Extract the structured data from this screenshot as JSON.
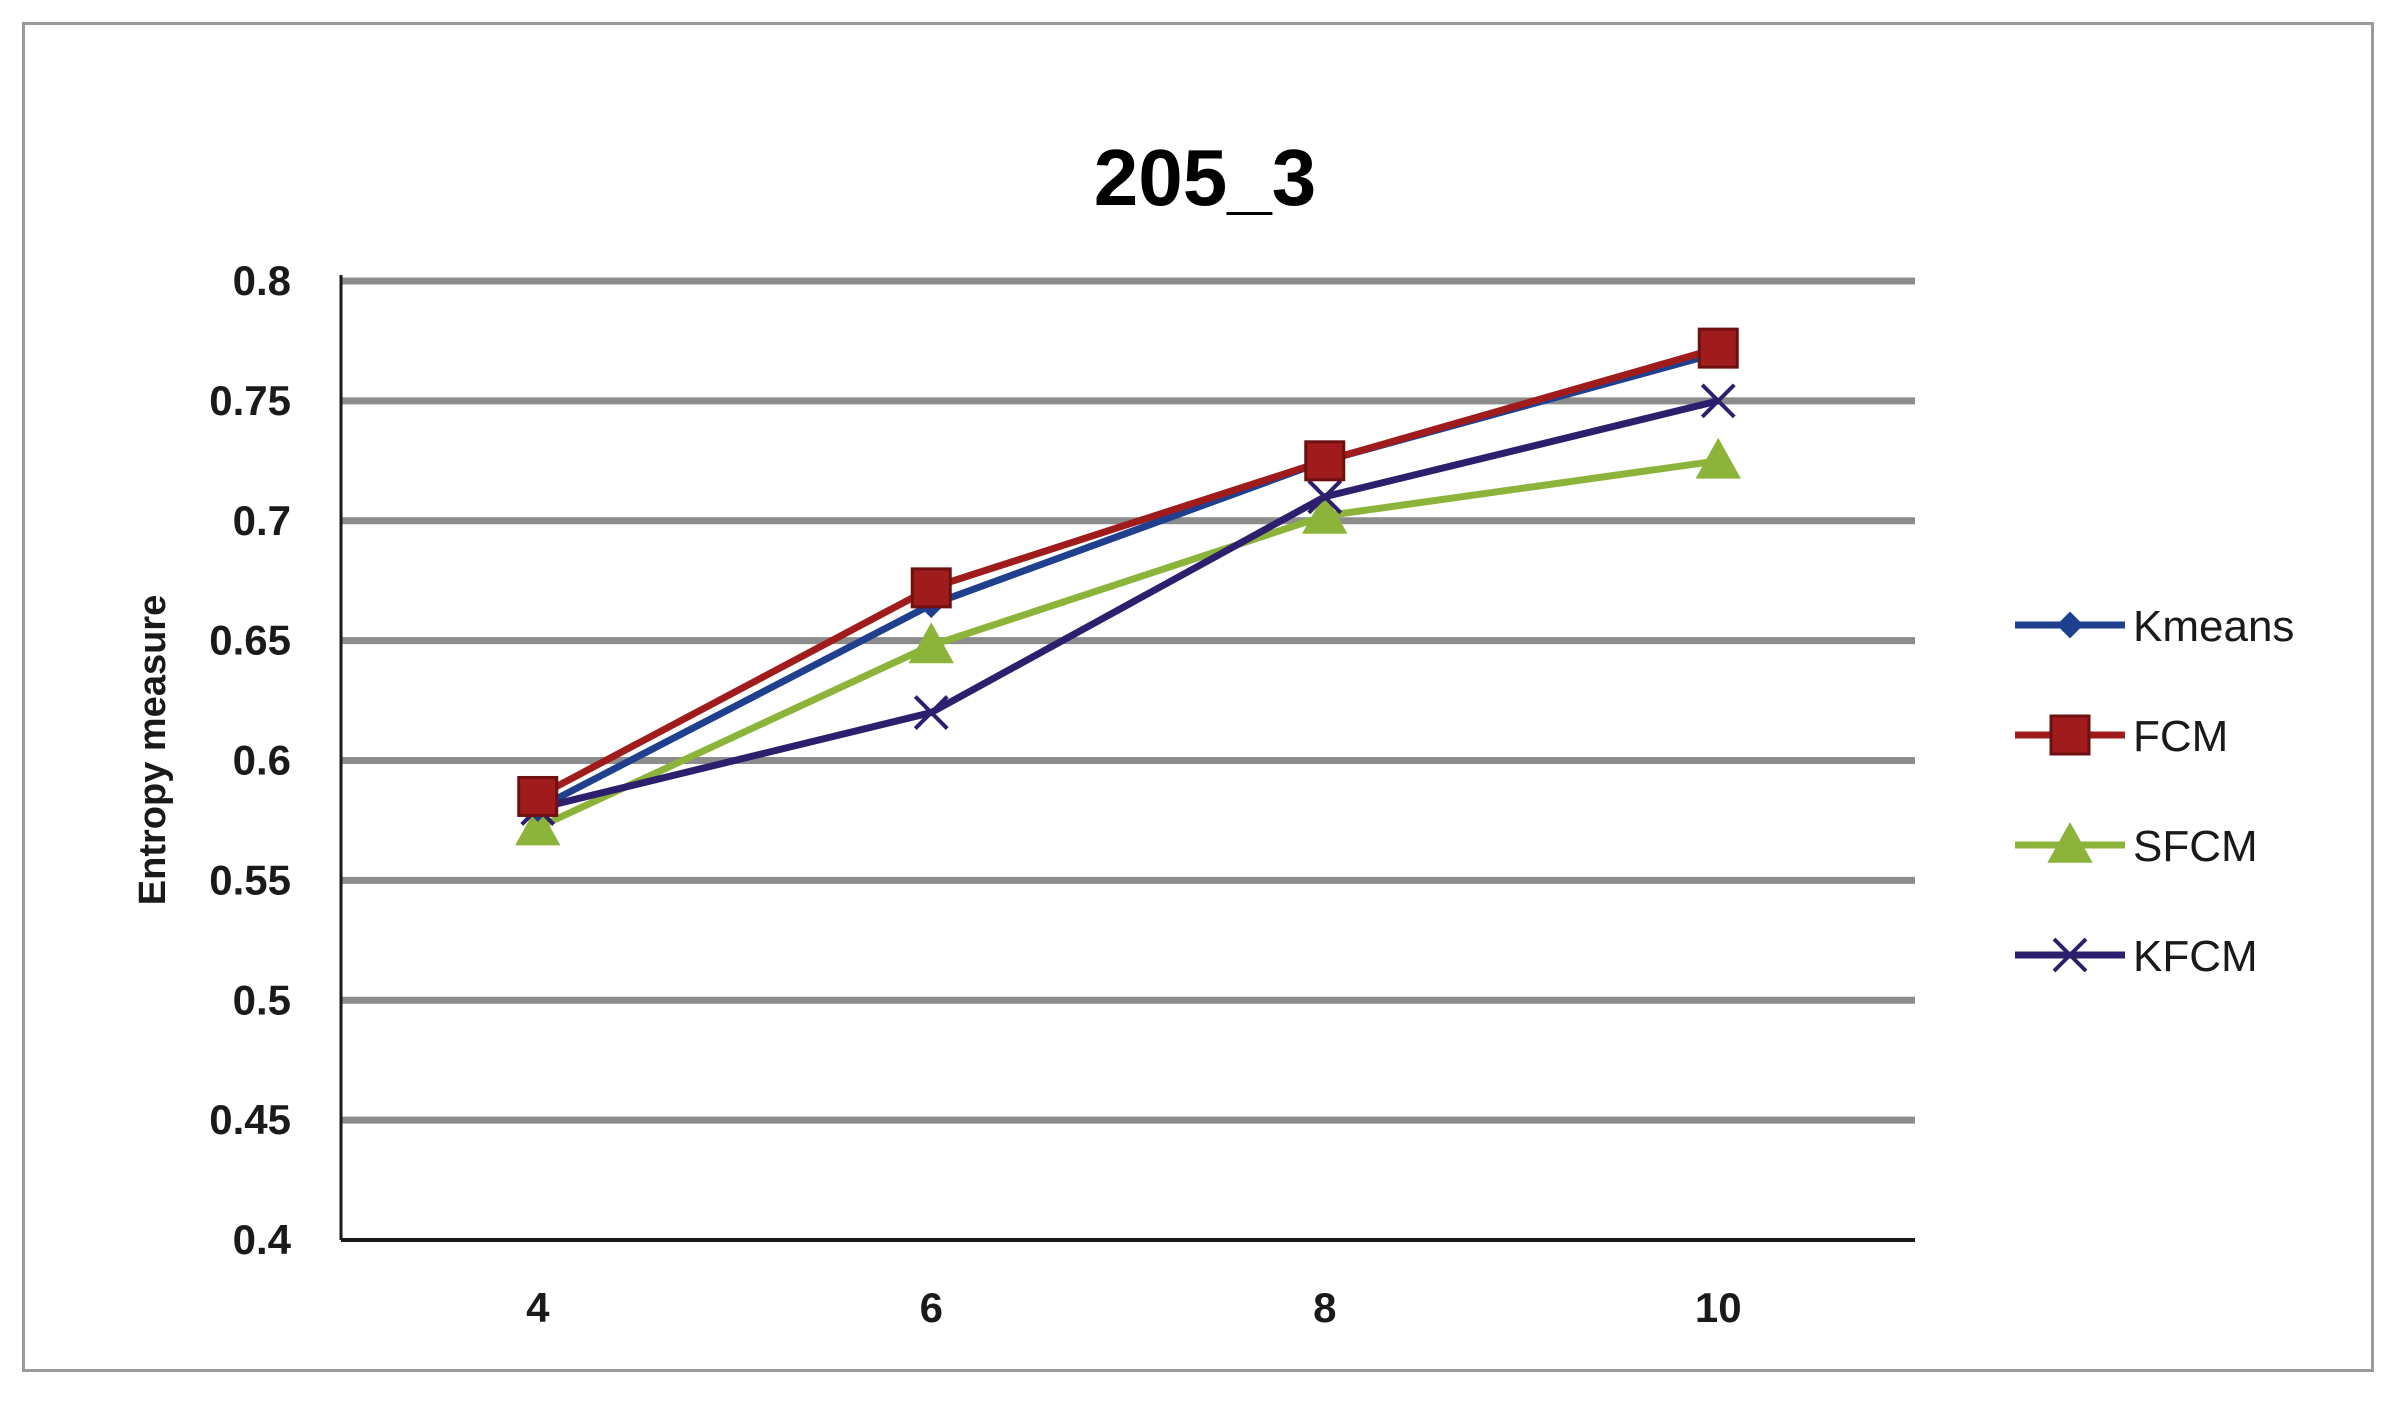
{
  "chart_data": {
    "type": "line",
    "title": "205_3",
    "xlabel": "",
    "ylabel": "Entropy measure",
    "x": [
      4,
      6,
      8,
      10
    ],
    "x_tick_labels": [
      "4",
      "6",
      "8",
      "10"
    ],
    "ylim": [
      0.4,
      0.8
    ],
    "y_ticks": [
      0.4,
      0.45,
      0.5,
      0.55,
      0.6,
      0.65,
      0.7,
      0.75,
      0.8
    ],
    "y_tick_labels": [
      "0.4",
      "0.45",
      "0.5",
      "0.55",
      "0.6",
      "0.65",
      "0.7",
      "0.75",
      "0.8"
    ],
    "grid": "horizontal",
    "legend_position": "right",
    "series": [
      {
        "name": "Kmeans",
        "values": [
          0.58,
          0.665,
          0.725,
          0.77
        ],
        "color": "#1f3f8f",
        "marker": "diamond"
      },
      {
        "name": "FCM",
        "values": [
          0.585,
          0.672,
          0.725,
          0.772
        ],
        "color": "#a01c1c",
        "marker": "square"
      },
      {
        "name": "SFCM",
        "values": [
          0.572,
          0.648,
          0.702,
          0.725
        ],
        "color": "#8db43a",
        "marker": "triangle"
      },
      {
        "name": "KFCM",
        "values": [
          0.58,
          0.62,
          0.71,
          0.75
        ],
        "color": "#2e1f6e",
        "marker": "x"
      }
    ]
  }
}
